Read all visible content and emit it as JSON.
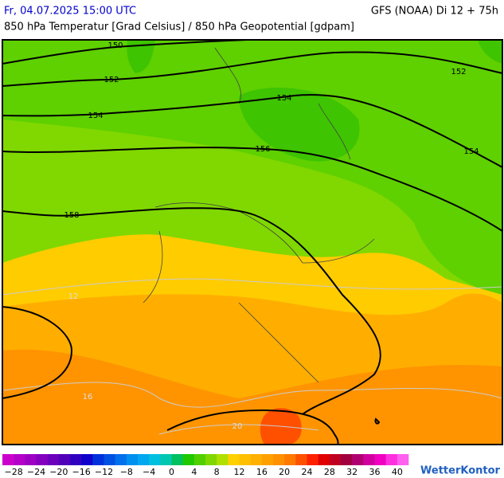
{
  "header": {
    "datetime": "Fr, 04.07.2025 15:00 UTC",
    "model": "GFS (NOAA) Di 12 + 75h",
    "subtitle": "850 hPa Temperatur [Grad Celsius] / 850 hPa Geopotential [gdpam]"
  },
  "map": {
    "geopotential_labels": [
      150,
      152,
      152,
      154,
      154,
      154,
      156,
      158
    ],
    "temperature_labels": [
      12,
      16,
      20
    ]
  },
  "colorbar": {
    "labels": [
      "−28",
      "−24",
      "−20",
      "−16",
      "−12",
      "−8",
      "−4",
      "0",
      "4",
      "8",
      "12",
      "16",
      "20",
      "24",
      "28",
      "32",
      "36",
      "40"
    ]
  },
  "logo": "WetterKontor"
}
